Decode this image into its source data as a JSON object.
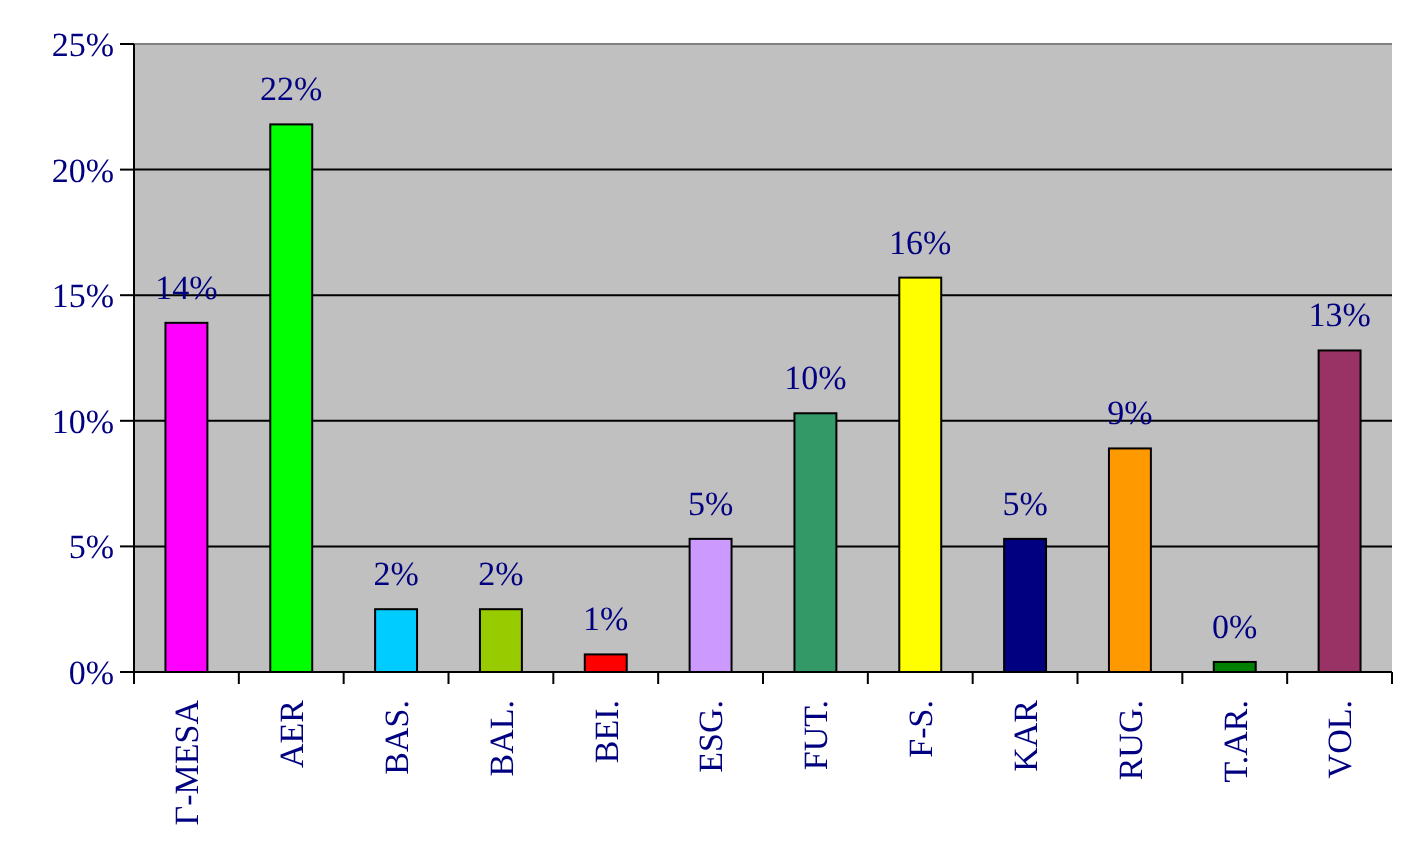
{
  "chart_data": {
    "type": "bar",
    "categories": [
      "Γ-MESA",
      "AER",
      "BAS.",
      "BAL.",
      "BEI.",
      "ESG.",
      "FUT.",
      "F-S.",
      "KAR",
      "RUG.",
      "T.AR.",
      "VOL."
    ],
    "values": [
      13.9,
      21.8,
      2.5,
      2.5,
      0.7,
      5.3,
      10.3,
      15.7,
      5.3,
      8.9,
      0.4,
      12.8
    ],
    "colors": [
      "#ff00ff",
      "#00ff00",
      "#00ccff",
      "#99cc00",
      "#ff0000",
      "#cc99ff",
      "#339966",
      "#ffff00",
      "#000080",
      "#ff9900",
      "#008000",
      "#993366"
    ],
    "value_labels": [
      "14%",
      "22%",
      "2%",
      "2%",
      "1%",
      "5%",
      "10%",
      "16%",
      "5%",
      "9%",
      "0%",
      "13%"
    ],
    "ylim": [
      0,
      25
    ],
    "yticks": [
      {
        "value": 0,
        "label": "0%"
      },
      {
        "value": 5,
        "label": "5%"
      },
      {
        "value": 10,
        "label": "10%"
      },
      {
        "value": 15,
        "label": "15%"
      },
      {
        "value": 20,
        "label": "20%"
      },
      {
        "value": 25,
        "label": "25%"
      }
    ],
    "grid": "y"
  }
}
